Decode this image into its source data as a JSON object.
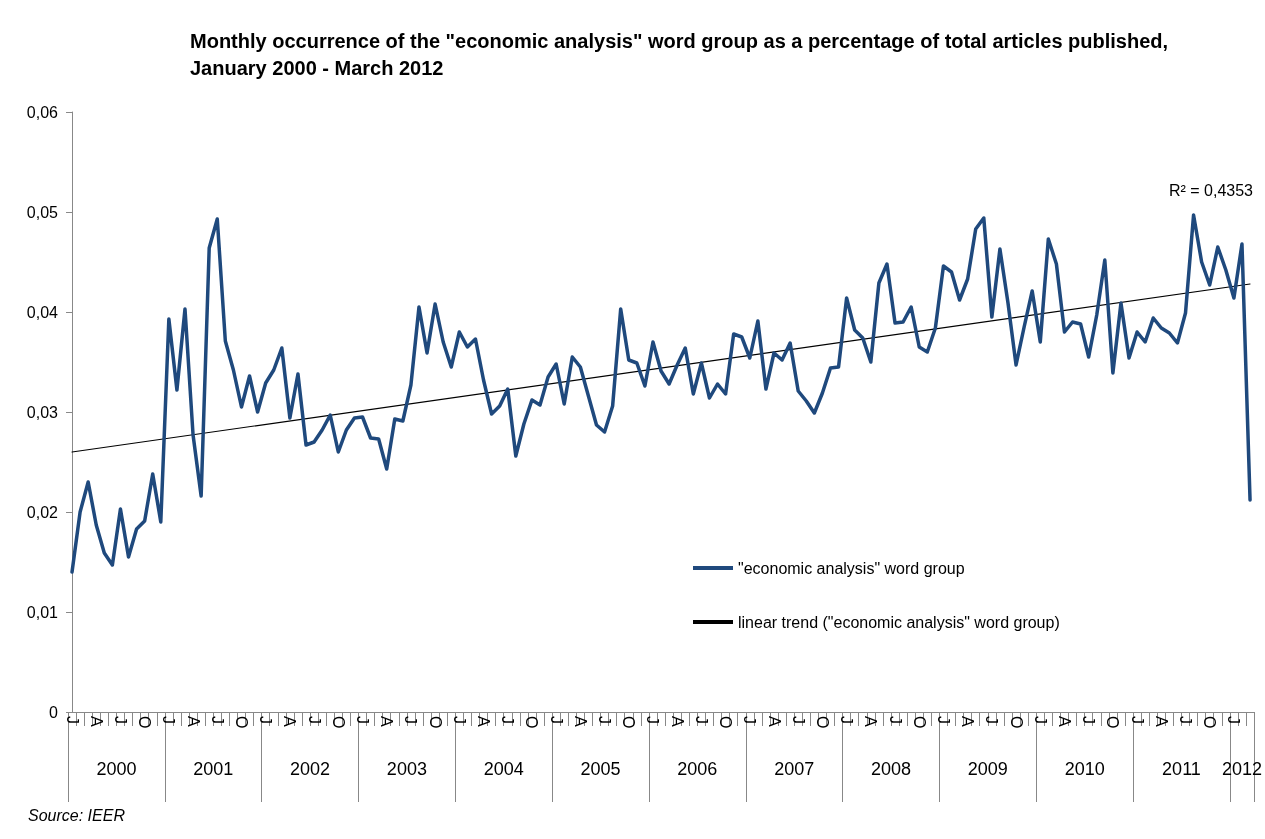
{
  "chart_data": {
    "type": "line",
    "title": "Monthly occurrence of the \"economic analysis\" word group as a percentage of total articles published, January 2000 - March 2012",
    "categories": [
      "J",
      null,
      null,
      "A",
      null,
      null,
      "J",
      null,
      null,
      "O",
      null,
      null,
      "J",
      null,
      null,
      "A",
      null,
      null,
      "J",
      null,
      null,
      "O",
      null,
      null,
      "J",
      null,
      null,
      "A",
      null,
      null,
      "J",
      null,
      null,
      "O",
      null,
      null,
      "J",
      null,
      null,
      "A",
      null,
      null,
      "J",
      null,
      null,
      "O",
      null,
      null,
      "J",
      null,
      null,
      "A",
      null,
      null,
      "J",
      null,
      null,
      "O",
      null,
      null,
      "J",
      null,
      null,
      "A",
      null,
      null,
      "J",
      null,
      null,
      "O",
      null,
      null,
      "J",
      null,
      null,
      "A",
      null,
      null,
      "J",
      null,
      null,
      "O",
      null,
      null,
      "J",
      null,
      null,
      "A",
      null,
      null,
      "J",
      null,
      null,
      "O",
      null,
      null,
      "J",
      null,
      null,
      "A",
      null,
      null,
      "J",
      null,
      null,
      "O",
      null,
      null,
      "J",
      null,
      null,
      "A",
      null,
      null,
      "J",
      null,
      null,
      "O",
      null,
      null,
      "J",
      null,
      null,
      "A",
      null,
      null,
      "J",
      null,
      null,
      "O",
      null,
      null,
      "J",
      null,
      null,
      "A",
      null,
      null,
      "J",
      null,
      null,
      "O",
      null,
      null,
      "J",
      null,
      null
    ],
    "series": [
      {
        "name": "\"economic analysis\" word group",
        "color": "#1f497d",
        "values": [
          0.014,
          0.02,
          0.023,
          0.0187,
          0.0159,
          0.0147,
          0.0203,
          0.0155,
          0.0183,
          0.0191,
          0.0238,
          0.019,
          0.0393,
          0.0322,
          0.0403,
          0.0277,
          0.0216,
          0.0464,
          0.0493,
          0.0371,
          0.0342,
          0.0305,
          0.0336,
          0.03,
          0.0329,
          0.0342,
          0.0364,
          0.0294,
          0.0338,
          0.0267,
          0.027,
          0.0282,
          0.0297,
          0.026,
          0.0282,
          0.0294,
          0.0295,
          0.0274,
          0.0273,
          0.0243,
          0.0293,
          0.0291,
          0.0327,
          0.0405,
          0.0359,
          0.0408,
          0.037,
          0.0345,
          0.038,
          0.0365,
          0.0373,
          0.0332,
          0.0298,
          0.0306,
          0.0323,
          0.0256,
          0.0288,
          0.0312,
          0.0307,
          0.0335,
          0.0348,
          0.0308,
          0.0355,
          0.0345,
          0.0316,
          0.0287,
          0.028,
          0.0306,
          0.0403,
          0.0352,
          0.0349,
          0.0326,
          0.037,
          0.0341,
          0.0328,
          0.0347,
          0.0364,
          0.0318,
          0.0349,
          0.0314,
          0.0328,
          0.0318,
          0.0378,
          0.0375,
          0.0354,
          0.0391,
          0.0323,
          0.0359,
          0.0352,
          0.0369,
          0.0321,
          0.0311,
          0.0299,
          0.0319,
          0.0344,
          0.0345,
          0.0414,
          0.0382,
          0.0374,
          0.035,
          0.0429,
          0.0448,
          0.0389,
          0.039,
          0.0405,
          0.0365,
          0.036,
          0.0384,
          0.0446,
          0.044,
          0.0412,
          0.0433,
          0.0483,
          0.0494,
          0.0395,
          0.0463,
          0.0409,
          0.0347,
          0.0385,
          0.0421,
          0.037,
          0.0473,
          0.0448,
          0.038,
          0.039,
          0.0388,
          0.0355,
          0.0397,
          0.0452,
          0.0339,
          0.0409,
          0.0354,
          0.038,
          0.037,
          0.0394,
          0.0384,
          0.0379,
          0.0369,
          0.0399,
          0.0497,
          0.045,
          0.0427,
          0.0465,
          0.0442,
          0.0414,
          0.0468,
          0.0212
        ]
      },
      {
        "name": "linear trend (\"economic analysis\" word group)",
        "color": "#000000",
        "values": [
          0.026,
          null,
          null,
          null,
          null,
          null,
          null,
          null,
          null,
          null,
          null,
          null,
          null,
          null,
          null,
          null,
          null,
          null,
          null,
          null,
          null,
          null,
          null,
          null,
          null,
          null,
          null,
          null,
          null,
          null,
          null,
          null,
          null,
          null,
          null,
          null,
          null,
          null,
          null,
          null,
          null,
          null,
          null,
          null,
          null,
          null,
          null,
          null,
          null,
          null,
          null,
          null,
          null,
          null,
          null,
          null,
          null,
          null,
          null,
          null,
          null,
          null,
          null,
          null,
          null,
          null,
          null,
          null,
          null,
          null,
          null,
          null,
          null,
          null,
          null,
          null,
          null,
          null,
          null,
          null,
          null,
          null,
          null,
          null,
          null,
          null,
          null,
          null,
          null,
          null,
          null,
          null,
          null,
          null,
          null,
          null,
          null,
          null,
          null,
          null,
          null,
          null,
          null,
          null,
          null,
          null,
          null,
          null,
          null,
          null,
          null,
          null,
          null,
          null,
          null,
          null,
          null,
          null,
          null,
          null,
          null,
          null,
          null,
          null,
          null,
          null,
          null,
          null,
          null,
          null,
          null,
          null,
          null,
          null,
          null,
          null,
          null,
          null,
          null,
          null,
          null,
          null,
          null,
          null,
          null,
          null,
          0.0428
        ]
      }
    ],
    "ylim": [
      0,
      0.06
    ],
    "yticks": [
      0,
      {
        "value": 0.01,
        "label": "0,01"
      },
      {
        "value": 0.02,
        "label": "0,02"
      },
      {
        "value": 0.03,
        "label": "0,03"
      },
      {
        "value": 0.04,
        "label": "0,04"
      },
      {
        "value": 0.05,
        "label": "0,05"
      },
      {
        "value": 0.06,
        "label": "0,06"
      }
    ],
    "grid": false,
    "legend": "right",
    "marker": "none",
    "line_style": "solid",
    "annotations": [
      "R² = 0,4353",
      "Source: IEER",
      "2000",
      "2001",
      "2002",
      "2003",
      "2004",
      "2005",
      "2006",
      "2007",
      "2008",
      "2009",
      "2010",
      "2011",
      "2012"
    ]
  }
}
